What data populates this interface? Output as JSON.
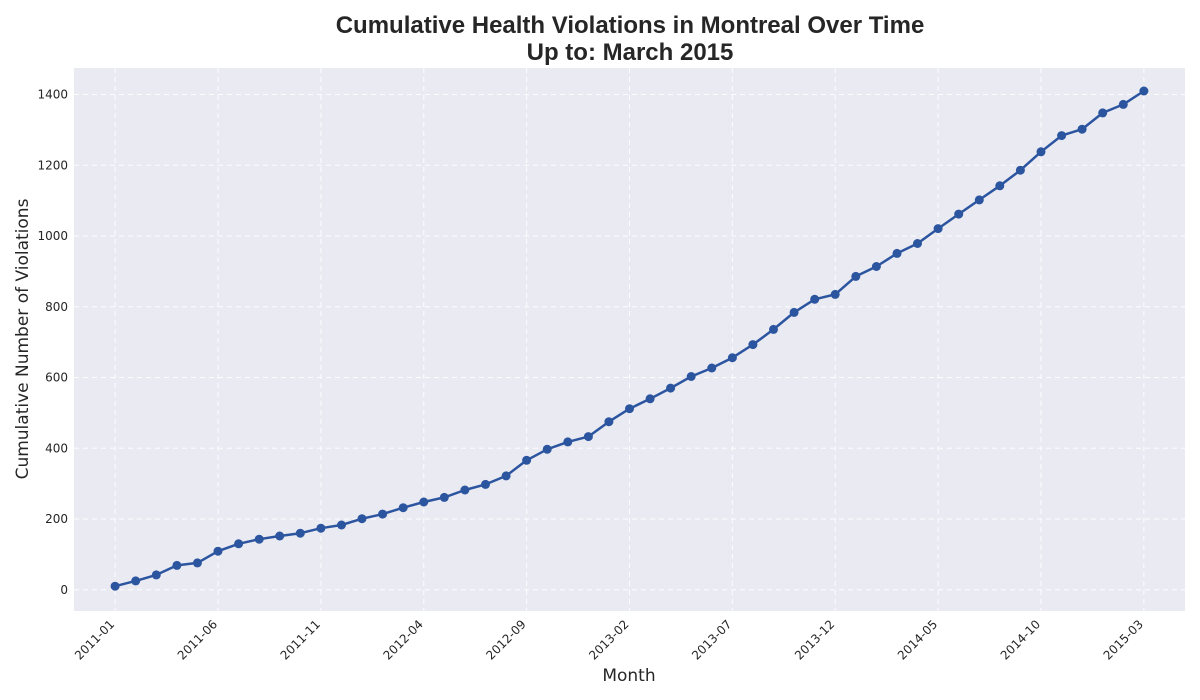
{
  "chart_data": {
    "type": "line",
    "title": "Cumulative Health Violations in Montreal Over Time",
    "subtitle": "Up to: March 2015",
    "xlabel": "Month",
    "ylabel": "Cumulative Number of Violations",
    "x_range": [
      "2010-11",
      "2015-05"
    ],
    "ylim": [
      -60,
      1475
    ],
    "yticks": [
      0,
      200,
      400,
      600,
      800,
      1000,
      1200,
      1400
    ],
    "xticks": [
      "2011-01",
      "2011-06",
      "2011-11",
      "2012-04",
      "2012-09",
      "2013-02",
      "2013-07",
      "2013-12",
      "2014-05",
      "2014-10",
      "2015-03"
    ],
    "grid": true,
    "colors": {
      "line": "#2c55a0",
      "plot_bg": "#eaeaf2"
    },
    "series": [
      {
        "x": [
          "2011-01",
          "2011-02",
          "2011-03",
          "2011-04",
          "2011-05",
          "2011-06",
          "2011-07",
          "2011-08",
          "2011-09",
          "2011-10",
          "2011-11",
          "2011-12",
          "2012-01",
          "2012-02",
          "2012-03",
          "2012-04",
          "2012-05",
          "2012-06",
          "2012-07",
          "2012-08",
          "2012-09",
          "2012-10",
          "2012-11",
          "2012-12",
          "2013-01",
          "2013-02",
          "2013-03",
          "2013-04",
          "2013-05",
          "2013-06",
          "2013-07",
          "2013-08",
          "2013-09",
          "2013-10",
          "2013-11",
          "2013-12",
          "2014-01",
          "2014-02",
          "2014-03",
          "2014-04",
          "2014-05",
          "2014-06",
          "2014-07",
          "2014-08",
          "2014-09",
          "2014-10",
          "2014-11",
          "2014-12",
          "2015-01",
          "2015-02",
          "2015-03"
        ],
        "values": [
          10,
          25,
          42,
          69,
          76,
          109,
          130,
          143,
          152,
          160,
          174,
          183,
          201,
          214,
          232,
          248,
          261,
          282,
          298,
          322,
          366,
          397,
          418,
          433,
          475,
          512,
          540,
          570,
          603,
          627,
          656,
          693,
          736,
          784,
          821,
          835,
          886,
          914,
          951,
          979,
          1021,
          1062,
          1102,
          1142,
          1186,
          1238,
          1284,
          1302,
          1348,
          1372,
          1410
        ]
      }
    ]
  }
}
